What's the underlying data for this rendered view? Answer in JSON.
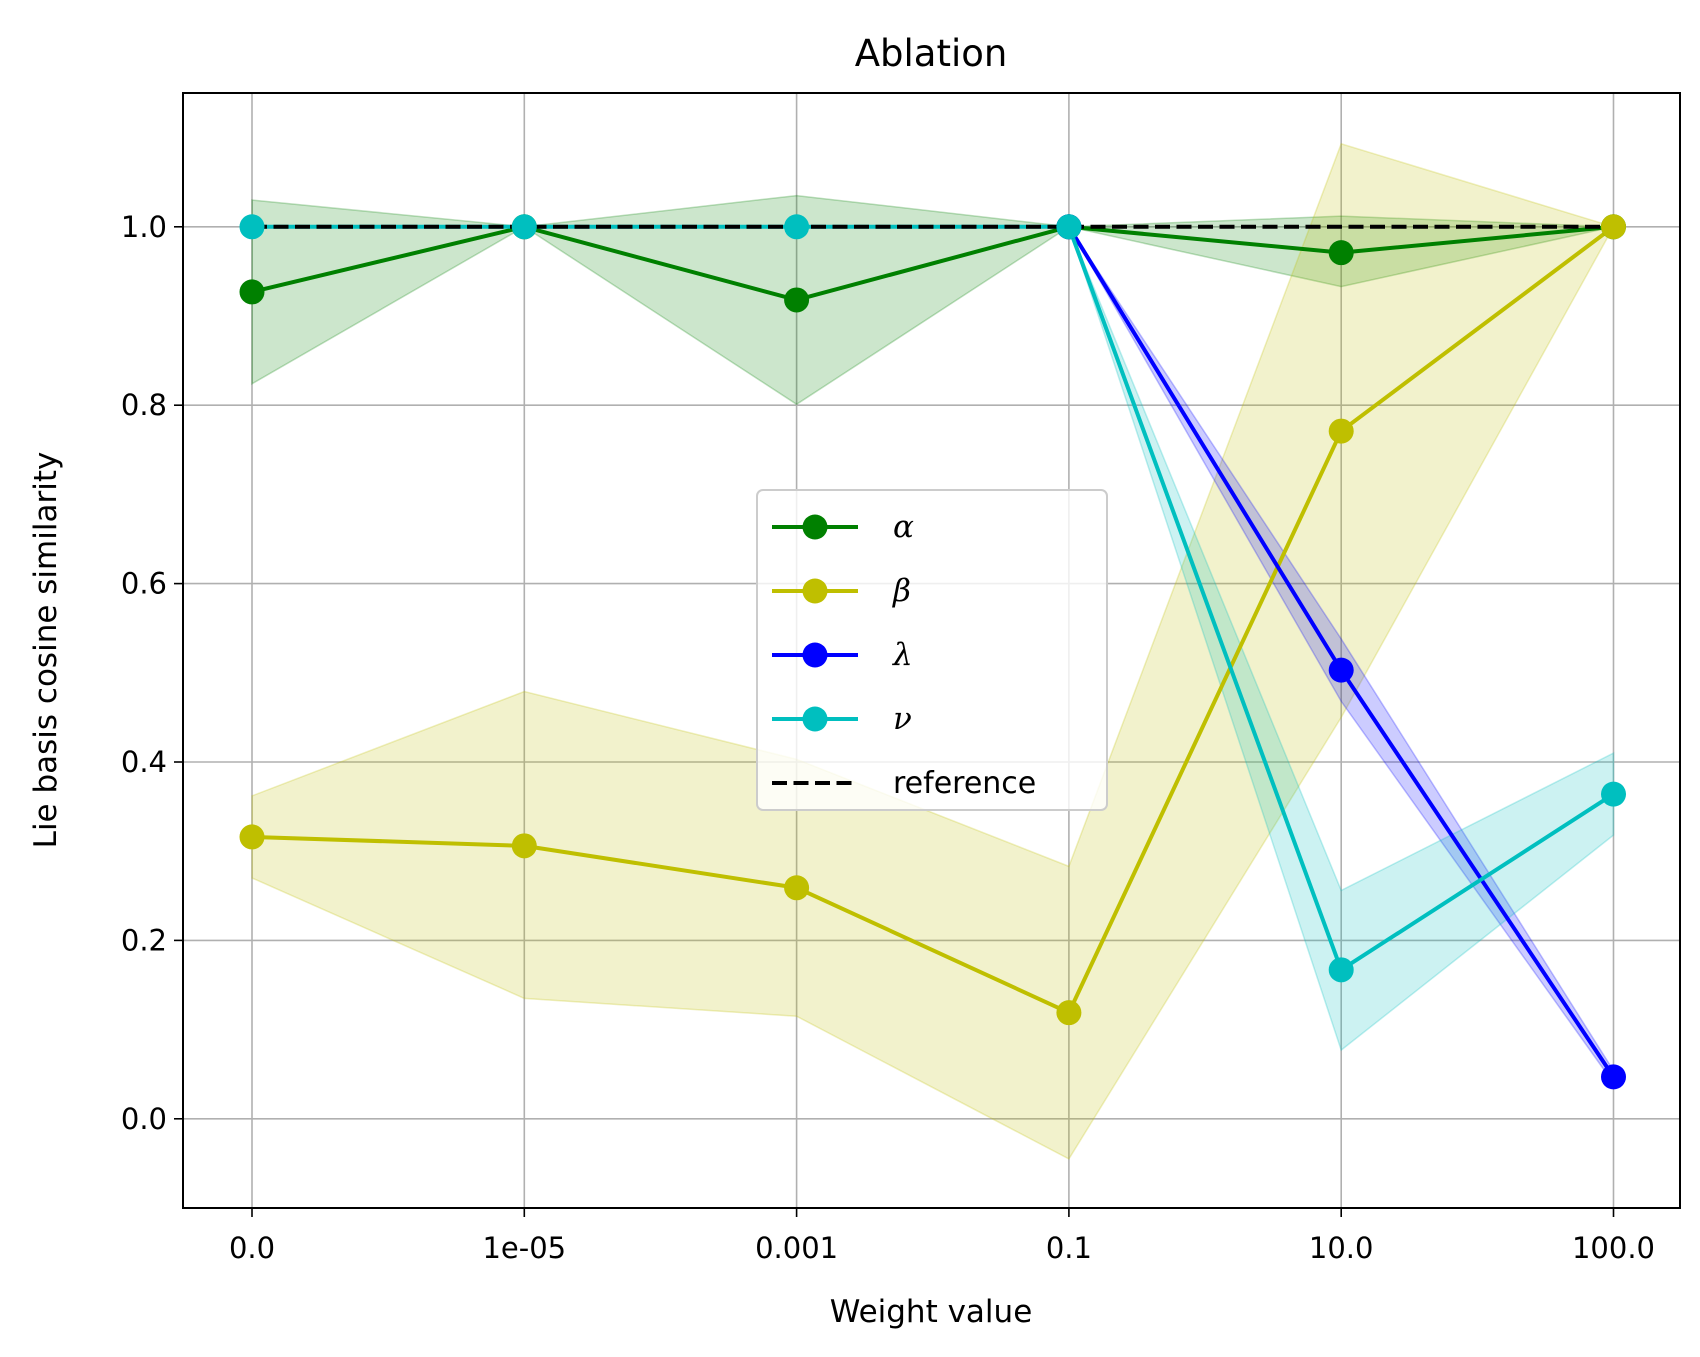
{
  "chart_data": {
    "type": "line",
    "title": "Ablation",
    "xlabel": "Weight value",
    "ylabel": "Lie basis cosine similarity",
    "categories": [
      "0.0",
      "1e-05",
      "0.001",
      "0.1",
      "10.0",
      "100.0"
    ],
    "ylim": [
      -0.1,
      1.15
    ],
    "yticks": [
      "0.0",
      "0.2",
      "0.4",
      "0.6",
      "0.8",
      "1.0"
    ],
    "grid": true,
    "legend_position": "center",
    "series": [
      {
        "name": "α",
        "color": "#008000",
        "values": [
          0.927,
          1.0,
          0.918,
          1.0,
          0.971,
          1.0
        ],
        "lower": [
          0.824,
          1.0,
          0.801,
          1.0,
          0.933,
          1.0
        ],
        "upper": [
          1.03,
          1.0,
          1.035,
          1.0,
          1.012,
          1.0
        ]
      },
      {
        "name": "β",
        "color": "#bfbf00",
        "values": [
          0.316,
          0.306,
          0.259,
          0.119,
          0.771,
          1.0
        ],
        "lower": [
          0.27,
          0.135,
          0.115,
          -0.045,
          0.45,
          1.0
        ],
        "upper": [
          0.362,
          0.479,
          0.403,
          0.283,
          1.093,
          1.0
        ]
      },
      {
        "name": "λ",
        "color": "#0000ff",
        "values": [
          null,
          null,
          null,
          1.0,
          0.503,
          0.047
        ],
        "lower": [
          null,
          null,
          null,
          1.0,
          0.468,
          0.04
        ],
        "upper": [
          null,
          null,
          null,
          1.0,
          0.538,
          0.054
        ]
      },
      {
        "name": "ν",
        "color": "#00bfbf",
        "values": [
          1.0,
          1.0,
          1.0,
          1.0,
          0.167,
          0.364
        ],
        "lower": [
          1.0,
          1.0,
          1.0,
          1.0,
          0.077,
          0.318
        ],
        "upper": [
          1.0,
          1.0,
          1.0,
          1.0,
          0.256,
          0.41
        ]
      }
    ],
    "reference": {
      "name": "reference",
      "value": 1.0,
      "color": "#000000"
    }
  }
}
